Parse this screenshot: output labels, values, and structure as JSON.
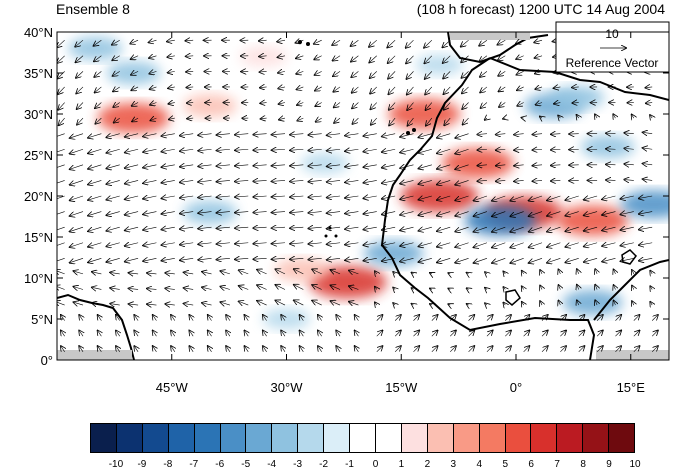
{
  "header": {
    "left_title": "Ensemble 8",
    "right_title": "(108 h forecast) 1200 UTC 14 Aug 2004"
  },
  "map": {
    "lat_range": [
      0,
      40
    ],
    "lon_range": [
      -60,
      20
    ],
    "lat_ticks": [
      {
        "value": 0,
        "label": "0°"
      },
      {
        "value": 5,
        "label": "5°N"
      },
      {
        "value": 10,
        "label": "10°N"
      },
      {
        "value": 15,
        "label": "15°N"
      },
      {
        "value": 20,
        "label": "20°N"
      },
      {
        "value": 25,
        "label": "25°N"
      },
      {
        "value": 30,
        "label": "30°N"
      },
      {
        "value": 35,
        "label": "35°N"
      },
      {
        "value": 40,
        "label": "40°N"
      }
    ],
    "lon_ticks": [
      {
        "value": -45,
        "label": "45°W"
      },
      {
        "value": -30,
        "label": "30°W"
      },
      {
        "value": -15,
        "label": "15°W"
      },
      {
        "value": 0,
        "label": "0°"
      },
      {
        "value": 15,
        "label": "15°E"
      }
    ],
    "reference_vector": {
      "magnitude": "10",
      "label": "Reference Vector"
    },
    "anomaly_features": [
      {
        "lon": -50,
        "lat": 29.5,
        "value": 6
      },
      {
        "lon": -40,
        "lat": 31,
        "value": 3
      },
      {
        "lon": -33,
        "lat": 37,
        "value": 2
      },
      {
        "lon": -12,
        "lat": 30,
        "value": 6
      },
      {
        "lon": -10,
        "lat": 20,
        "value": 7
      },
      {
        "lon": -5,
        "lat": 24,
        "value": 6
      },
      {
        "lon": 1,
        "lat": 18,
        "value": 7
      },
      {
        "lon": 10,
        "lat": 17,
        "value": 6
      },
      {
        "lon": -22,
        "lat": 9.5,
        "value": 7
      },
      {
        "lon": -28,
        "lat": 11,
        "value": 3
      },
      {
        "lon": -2,
        "lat": 17,
        "value": -6
      },
      {
        "lon": -16,
        "lat": 13,
        "value": -4
      },
      {
        "lon": -55,
        "lat": 38,
        "value": -3
      },
      {
        "lon": -50,
        "lat": 35,
        "value": -3
      },
      {
        "lon": 5,
        "lat": 31,
        "value": -4
      },
      {
        "lon": 8,
        "lat": 32,
        "value": -3
      },
      {
        "lon": -40,
        "lat": 18,
        "value": -3
      },
      {
        "lon": -25,
        "lat": 24,
        "value": -2
      },
      {
        "lon": 18,
        "lat": 19,
        "value": -5
      },
      {
        "lon": 10,
        "lat": 7,
        "value": -4
      },
      {
        "lon": -10,
        "lat": 36,
        "value": -2
      },
      {
        "lon": -30,
        "lat": 5,
        "value": -2
      },
      {
        "lon": 12,
        "lat": 26,
        "value": -3
      }
    ]
  },
  "colorbar": {
    "labels": [
      "-10",
      "-9",
      "-8",
      "-7",
      "-6",
      "-5",
      "-4",
      "-3",
      "-2",
      "-1",
      "0",
      "1",
      "2",
      "3",
      "4",
      "5",
      "6",
      "7",
      "8",
      "9",
      "10"
    ],
    "colors": [
      "#0a1f4d",
      "#0c3270",
      "#134a8f",
      "#1f63a8",
      "#2b74b5",
      "#4a8fc6",
      "#6aa8d3",
      "#8fc2e0",
      "#b5d9ec",
      "#dbeef8",
      "#ffffff",
      "#ffffff",
      "#fde0e0",
      "#fbbfb2",
      "#f99a86",
      "#f47a62",
      "#ea4f3e",
      "#d8302c",
      "#bb1b22",
      "#951217",
      "#6e0a0e"
    ]
  }
}
